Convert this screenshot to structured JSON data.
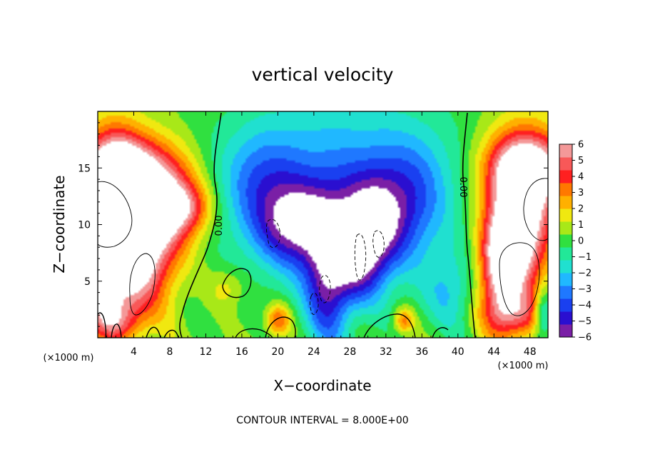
{
  "chart_data": {
    "type": "heatmap",
    "title": "vertical velocity",
    "xlabel": "X−coordinate",
    "ylabel": "Z−coordinate",
    "x_unit_label": "(×1000 m)",
    "x_unit_label_right": "(×1000 m)",
    "xlim": [
      0,
      50
    ],
    "ylim": [
      0,
      20
    ],
    "x_ticks": [
      4,
      8,
      12,
      16,
      20,
      24,
      28,
      32,
      36,
      40,
      44,
      48
    ],
    "x_tick_labels": [
      "4",
      "8",
      "12",
      "16",
      "20",
      "24",
      "28",
      "32",
      "36",
      "40",
      "44",
      "48"
    ],
    "y_ticks": [
      5,
      10,
      15
    ],
    "y_tick_labels": [
      "5",
      "10",
      "15"
    ],
    "colorbar": {
      "min": -6,
      "max": 6,
      "ticks": [
        6,
        5,
        4,
        3,
        2,
        1,
        0,
        -1,
        -2,
        -3,
        -4,
        -5,
        -6
      ],
      "tick_labels": [
        "6",
        "5",
        "4",
        "3",
        "2",
        "1",
        "0",
        "−1",
        "−2",
        "−3",
        "−4",
        "−5",
        "−6"
      ],
      "colors": [
        "#7a1fa6",
        "#2a0fd0",
        "#1a40f0",
        "#1f78ff",
        "#20b8ff",
        "#20e0d0",
        "#22e898",
        "#30e040",
        "#a8e818",
        "#f0e810",
        "#ffb000",
        "#ff7800",
        "#ff2020",
        "#f85858",
        "#f49898"
      ]
    },
    "contour_labels": [
      "0.00",
      "0.00"
    ],
    "footer": "CONTOUR INTERVAL = 8.000E+00",
    "features": [
      {
        "x": 2,
        "z": 15,
        "amp": 5.5,
        "sx": 3.5,
        "sz": 2.2
      },
      {
        "x": 7,
        "z": 12,
        "amp": 6.5,
        "sx": 3.0,
        "sz": 3.0
      },
      {
        "x": 2,
        "z": 10,
        "amp": 6.5,
        "sx": 2.2,
        "sz": 5.0
      },
      {
        "x": 5,
        "z": 7,
        "amp": 5.0,
        "sx": 2.5,
        "sz": 3.5
      },
      {
        "x": 10,
        "z": 11.5,
        "amp": 2.5,
        "sx": 2.0,
        "sz": 1.5
      },
      {
        "x": 0.5,
        "z": 4,
        "amp": 3.0,
        "sx": 1.5,
        "sz": 2.5
      },
      {
        "x": 2,
        "z": 1.5,
        "amp": 2.5,
        "sx": 2.0,
        "sz": 1.2
      },
      {
        "x": 48,
        "z": 15,
        "amp": 5.5,
        "sx": 3.5,
        "sz": 2.2
      },
      {
        "x": 47,
        "z": 11,
        "amp": 6.5,
        "sx": 2.5,
        "sz": 4.5
      },
      {
        "x": 45.5,
        "z": 8,
        "amp": 4.5,
        "sx": 2.0,
        "sz": 3.0
      },
      {
        "x": 46.5,
        "z": 2,
        "amp": 3.5,
        "sx": 2.5,
        "sz": 1.5
      },
      {
        "x": 26.5,
        "z": 13,
        "amp": -3.5,
        "sx": 9.0,
        "sz": 6.0
      },
      {
        "x": 22,
        "z": 10,
        "amp": -4.5,
        "sx": 3.0,
        "sz": 2.5
      },
      {
        "x": 30.5,
        "z": 10,
        "amp": -4.5,
        "sx": 2.8,
        "sz": 3.0
      },
      {
        "x": 25.5,
        "z": 4.5,
        "amp": -4.5,
        "sx": 1.8,
        "sz": 4.0
      },
      {
        "x": 29,
        "z": 6.5,
        "amp": -3.5,
        "sx": 2.0,
        "sz": 2.5
      },
      {
        "x": 18,
        "z": 14,
        "amp": -2.0,
        "sx": 3.0,
        "sz": 3.0
      },
      {
        "x": 35,
        "z": 13,
        "amp": -2.0,
        "sx": 3.0,
        "sz": 3.5
      },
      {
        "x": 39,
        "z": 4,
        "amp": -2.0,
        "sx": 2.0,
        "sz": 2.5
      },
      {
        "x": 14.5,
        "z": 4.5,
        "amp": 1.5,
        "sx": 1.5,
        "sz": 1.2
      },
      {
        "x": 20,
        "z": 1.5,
        "amp": 3.5,
        "sx": 1.0,
        "sz": 1.0
      },
      {
        "x": 34,
        "z": 1.5,
        "amp": 3.0,
        "sx": 0.8,
        "sz": 0.8
      },
      {
        "x": 44.5,
        "z": 5,
        "amp": 3.0,
        "sx": 1.5,
        "sz": 3.0
      },
      {
        "x": 49.5,
        "z": 2,
        "amp": -4.0,
        "sx": 0.8,
        "sz": 1.5
      }
    ]
  }
}
